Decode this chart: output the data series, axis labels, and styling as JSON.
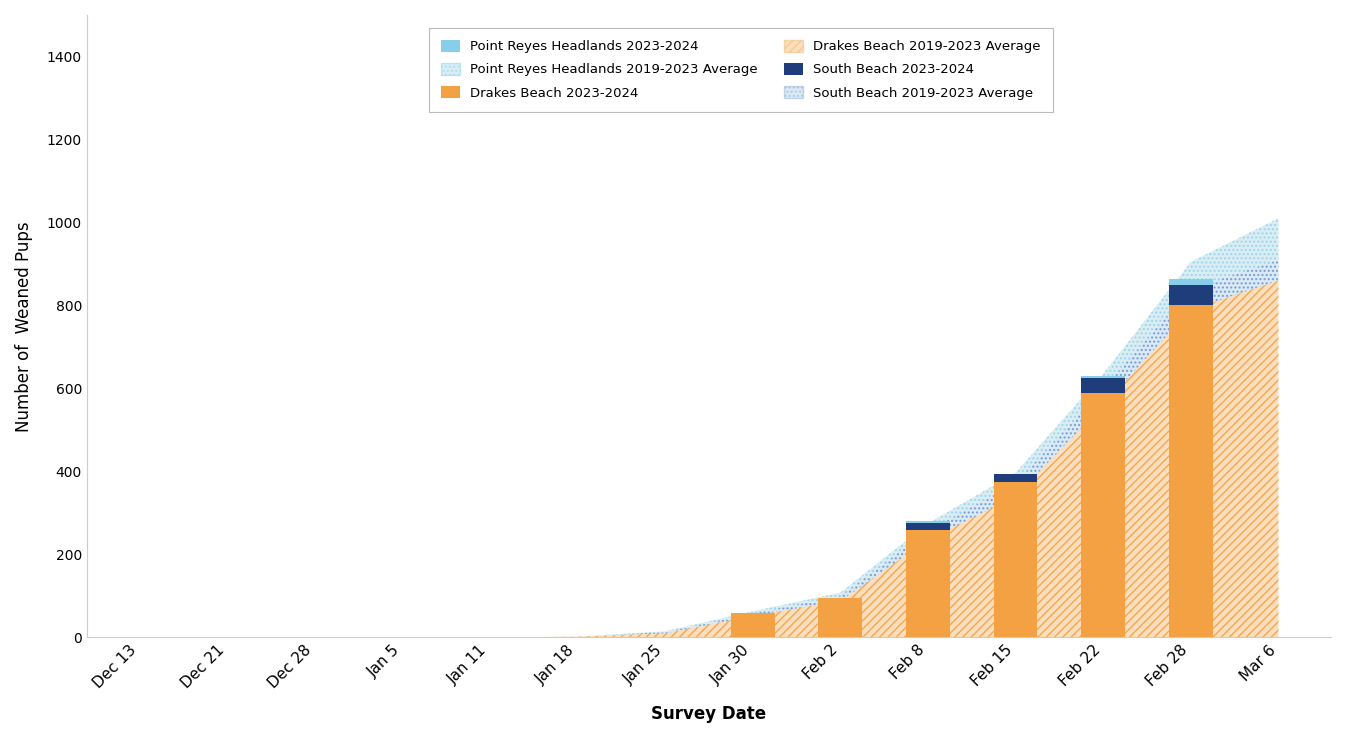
{
  "dates": [
    "Dec 13",
    "Dec 21",
    "Dec 28",
    "Jan 5",
    "Jan 11",
    "Jan 18",
    "Jan 25",
    "Jan 30",
    "Feb 2",
    "Feb 8",
    "Feb 15",
    "Feb 22",
    "Feb 28",
    "Mar 6"
  ],
  "n_dates": 14,
  "avg_drakes": [
    0,
    0,
    0,
    0,
    0,
    2,
    10,
    52,
    88,
    235,
    340,
    560,
    790,
    860
  ],
  "avg_south": [
    0,
    0,
    0,
    0,
    0,
    0,
    3,
    6,
    12,
    22,
    32,
    40,
    50,
    50
  ],
  "avg_prh": [
    0,
    0,
    0,
    0,
    0,
    0,
    2,
    5,
    8,
    18,
    25,
    35,
    65,
    100
  ],
  "bar_drakes": [
    0,
    0,
    0,
    0,
    0,
    0,
    2,
    58,
    95,
    260,
    375,
    590,
    800,
    0
  ],
  "bar_south": [
    0,
    0,
    0,
    0,
    0,
    0,
    0,
    0,
    0,
    15,
    20,
    35,
    50,
    0
  ],
  "bar_prh": [
    0,
    0,
    0,
    0,
    0,
    0,
    0,
    0,
    0,
    5,
    0,
    5,
    15,
    0
  ],
  "color_prh_bar": "#87ceeb",
  "color_drakes_bar": "#f4a143",
  "color_south_bar": "#1f3d7a",
  "color_drakes_area": "#f4a143",
  "color_south_area": "#6baed6",
  "color_prh_area": "#add8e6",
  "ylabel": "Number of  Weaned Pups",
  "xlabel": "Survey Date",
  "ylim": [
    0,
    1500
  ],
  "yticks": [
    0,
    200,
    400,
    600,
    800,
    1000,
    1200,
    1400
  ]
}
